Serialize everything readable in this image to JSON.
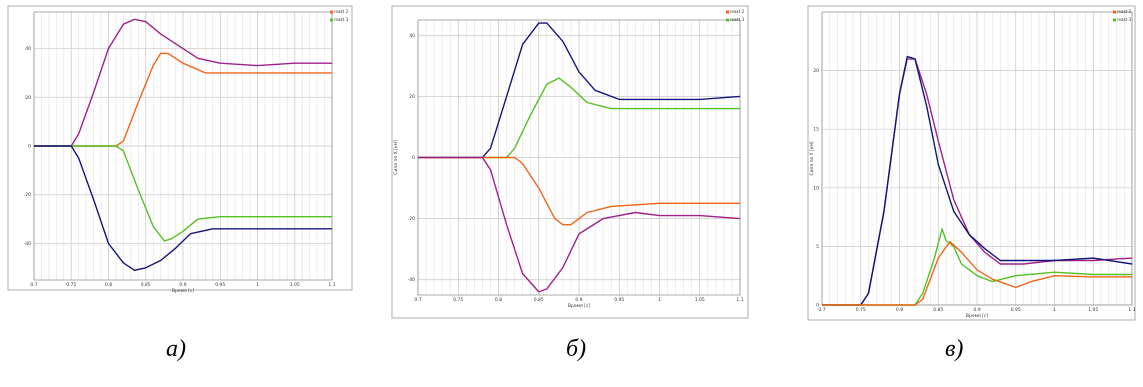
{
  "captions": [
    "а)",
    "б)",
    "в)"
  ],
  "colors": {
    "purple": "#a0208a",
    "orange": "#f26418",
    "green": "#55c020",
    "navy": "#14157a",
    "grid": "#c8c8c8",
    "frame": "#9a9a9a"
  },
  "chart_data": [
    {
      "type": "line",
      "xlabel": "Время [с]",
      "ylabel": "",
      "xlim": [
        0.7,
        1.1
      ],
      "ylim": [
        -55,
        55
      ],
      "grid": true,
      "legend_position": "top-right",
      "legend": [
        "reakt 2",
        "reakt 3"
      ],
      "x_ticks": [
        "0.7",
        "0.75",
        "0.8",
        "0.85",
        "0.9",
        "0.95",
        "1",
        "1.05",
        "1.1"
      ],
      "y_ticks": [
        "-40",
        "-20",
        "0",
        "20",
        "40"
      ],
      "series": [
        {
          "color": "#a0208a",
          "points": [
            [
              0.7,
              0
            ],
            [
              0.75,
              0
            ],
            [
              0.76,
              5
            ],
            [
              0.78,
              22
            ],
            [
              0.8,
              40
            ],
            [
              0.82,
              50
            ],
            [
              0.835,
              52
            ],
            [
              0.85,
              51
            ],
            [
              0.87,
              46
            ],
            [
              0.89,
              42
            ],
            [
              0.92,
              36
            ],
            [
              0.95,
              34
            ],
            [
              1.0,
              33
            ],
            [
              1.05,
              34
            ],
            [
              1.1,
              34
            ]
          ]
        },
        {
          "color": "#f26418",
          "points": [
            [
              0.7,
              0
            ],
            [
              0.81,
              0
            ],
            [
              0.82,
              2
            ],
            [
              0.84,
              18
            ],
            [
              0.86,
              33
            ],
            [
              0.87,
              38
            ],
            [
              0.88,
              38
            ],
            [
              0.9,
              34
            ],
            [
              0.93,
              30
            ],
            [
              0.96,
              30
            ],
            [
              1.0,
              30
            ],
            [
              1.05,
              30
            ],
            [
              1.1,
              30
            ]
          ]
        },
        {
          "color": "#55c020",
          "points": [
            [
              0.7,
              0
            ],
            [
              0.81,
              0
            ],
            [
              0.82,
              -2
            ],
            [
              0.84,
              -18
            ],
            [
              0.86,
              -33
            ],
            [
              0.875,
              -39
            ],
            [
              0.885,
              -38
            ],
            [
              0.9,
              -35
            ],
            [
              0.92,
              -30
            ],
            [
              0.95,
              -29
            ],
            [
              1.0,
              -29
            ],
            [
              1.05,
              -29
            ],
            [
              1.1,
              -29
            ]
          ]
        },
        {
          "color": "#14157a",
          "points": [
            [
              0.7,
              0
            ],
            [
              0.75,
              0
            ],
            [
              0.76,
              -5
            ],
            [
              0.78,
              -22
            ],
            [
              0.8,
              -40
            ],
            [
              0.82,
              -48
            ],
            [
              0.835,
              -51
            ],
            [
              0.85,
              -50
            ],
            [
              0.87,
              -47
            ],
            [
              0.89,
              -42
            ],
            [
              0.91,
              -36
            ],
            [
              0.94,
              -34
            ],
            [
              1.0,
              -34
            ],
            [
              1.05,
              -34
            ],
            [
              1.1,
              -34
            ]
          ]
        }
      ]
    },
    {
      "type": "line",
      "xlabel": "Время [с]",
      "ylabel": "Сила по X [кН]",
      "xlim": [
        0.7,
        1.1
      ],
      "ylim": [
        -45,
        45
      ],
      "grid": true,
      "legend_position": "top-right",
      "legend": [
        "reakt 2",
        "reakt 3"
      ],
      "x_ticks": [
        "0.7",
        "0.75",
        "0.8",
        "0.85",
        "0.9",
        "0.95",
        "1",
        "1.05",
        "1.1"
      ],
      "y_ticks": [
        "-40",
        "-20",
        "0",
        "20",
        "40"
      ],
      "series": [
        {
          "color": "#14157a",
          "points": [
            [
              0.7,
              0
            ],
            [
              0.78,
              0
            ],
            [
              0.79,
              3
            ],
            [
              0.81,
              20
            ],
            [
              0.83,
              37
            ],
            [
              0.85,
              44
            ],
            [
              0.86,
              44
            ],
            [
              0.88,
              38
            ],
            [
              0.9,
              28
            ],
            [
              0.92,
              22
            ],
            [
              0.95,
              19
            ],
            [
              1.0,
              19
            ],
            [
              1.05,
              19
            ],
            [
              1.1,
              20
            ]
          ]
        },
        {
          "color": "#55c020",
          "points": [
            [
              0.7,
              0
            ],
            [
              0.81,
              0
            ],
            [
              0.82,
              3
            ],
            [
              0.84,
              14
            ],
            [
              0.86,
              24
            ],
            [
              0.875,
              26
            ],
            [
              0.89,
              23
            ],
            [
              0.91,
              18
            ],
            [
              0.94,
              16
            ],
            [
              1.0,
              16
            ],
            [
              1.05,
              16
            ],
            [
              1.1,
              16
            ]
          ]
        },
        {
          "color": "#f26418",
          "points": [
            [
              0.7,
              0
            ],
            [
              0.82,
              0
            ],
            [
              0.83,
              -2
            ],
            [
              0.85,
              -10
            ],
            [
              0.87,
              -20
            ],
            [
              0.88,
              -22
            ],
            [
              0.89,
              -22
            ],
            [
              0.91,
              -18
            ],
            [
              0.94,
              -16
            ],
            [
              1.0,
              -15
            ],
            [
              1.05,
              -15
            ],
            [
              1.1,
              -15
            ]
          ]
        },
        {
          "color": "#a0208a",
          "points": [
            [
              0.7,
              0
            ],
            [
              0.78,
              0
            ],
            [
              0.79,
              -4
            ],
            [
              0.81,
              -22
            ],
            [
              0.83,
              -38
            ],
            [
              0.85,
              -44
            ],
            [
              0.86,
              -43
            ],
            [
              0.88,
              -36
            ],
            [
              0.9,
              -25
            ],
            [
              0.93,
              -20
            ],
            [
              0.97,
              -18
            ],
            [
              1.0,
              -19
            ],
            [
              1.05,
              -19
            ],
            [
              1.1,
              -20
            ]
          ]
        }
      ]
    },
    {
      "type": "line",
      "xlabel": "Время [с]",
      "ylabel": "Сила по Y [кН]",
      "xlim": [
        0.7,
        1.1
      ],
      "ylim": [
        0,
        25
      ],
      "grid": true,
      "legend_position": "top-right",
      "legend": [
        "reakt 2",
        "reakt 3"
      ],
      "x_ticks": [
        "0.7",
        "0.75",
        "0.8",
        "0.85",
        "0.9",
        "0.95",
        "1",
        "1.05",
        "1.1"
      ],
      "y_ticks": [
        "0",
        "5",
        "10",
        "15",
        "20"
      ],
      "series": [
        {
          "color": "#a0208a",
          "points": [
            [
              0.7,
              0
            ],
            [
              0.75,
              0
            ],
            [
              0.76,
              1
            ],
            [
              0.78,
              8
            ],
            [
              0.8,
              18
            ],
            [
              0.81,
              21
            ],
            [
              0.82,
              21
            ],
            [
              0.835,
              18
            ],
            [
              0.85,
              14
            ],
            [
              0.87,
              9
            ],
            [
              0.89,
              6
            ],
            [
              0.91,
              4.5
            ],
            [
              0.93,
              3.5
            ],
            [
              0.96,
              3.5
            ],
            [
              1.0,
              3.8
            ],
            [
              1.05,
              3.8
            ],
            [
              1.1,
              4
            ]
          ]
        },
        {
          "color": "#14157a",
          "points": [
            [
              0.7,
              0
            ],
            [
              0.75,
              0
            ],
            [
              0.76,
              1
            ],
            [
              0.78,
              8
            ],
            [
              0.8,
              18
            ],
            [
              0.81,
              21.2
            ],
            [
              0.82,
              21
            ],
            [
              0.835,
              17
            ],
            [
              0.85,
              12
            ],
            [
              0.87,
              8
            ],
            [
              0.89,
              6
            ],
            [
              0.91,
              4.8
            ],
            [
              0.93,
              3.8
            ],
            [
              0.96,
              3.8
            ],
            [
              1.0,
              3.8
            ],
            [
              1.05,
              4
            ],
            [
              1.1,
              3.5
            ]
          ]
        },
        {
          "color": "#55c020",
          "points": [
            [
              0.7,
              0
            ],
            [
              0.82,
              0
            ],
            [
              0.83,
              1
            ],
            [
              0.845,
              4
            ],
            [
              0.855,
              6.5
            ],
            [
              0.86,
              5.5
            ],
            [
              0.87,
              5
            ],
            [
              0.88,
              3.5
            ],
            [
              0.9,
              2.5
            ],
            [
              0.92,
              2
            ],
            [
              0.95,
              2.5
            ],
            [
              1.0,
              2.8
            ],
            [
              1.05,
              2.6
            ],
            [
              1.1,
              2.6
            ]
          ]
        },
        {
          "color": "#f26418",
          "points": [
            [
              0.7,
              0
            ],
            [
              0.82,
              0
            ],
            [
              0.83,
              0.5
            ],
            [
              0.85,
              4
            ],
            [
              0.865,
              5.4
            ],
            [
              0.88,
              4.5
            ],
            [
              0.9,
              3
            ],
            [
              0.92,
              2.2
            ],
            [
              0.95,
              1.5
            ],
            [
              0.97,
              2
            ],
            [
              1.0,
              2.5
            ],
            [
              1.05,
              2.4
            ],
            [
              1.1,
              2.4
            ]
          ]
        }
      ]
    }
  ]
}
